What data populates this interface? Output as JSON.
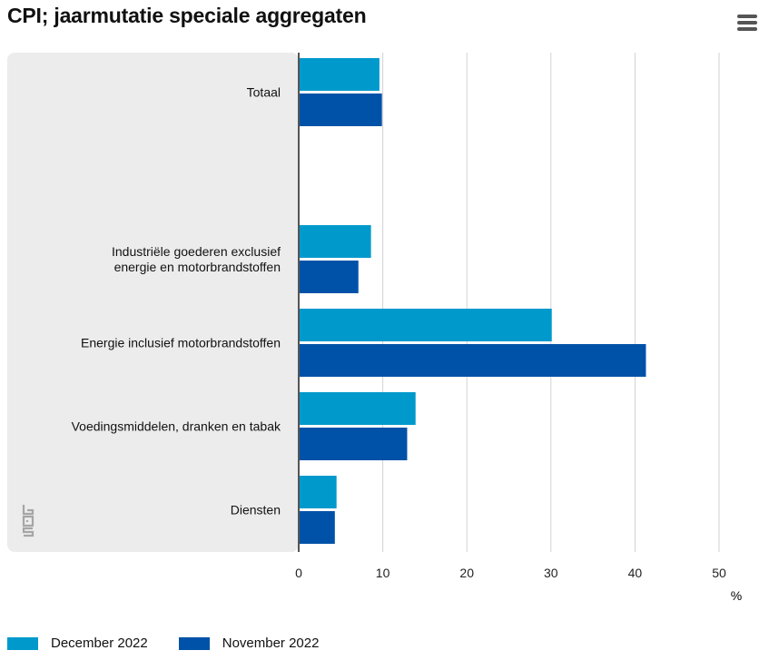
{
  "title": "CPI; jaarmutatie speciale aggregaten",
  "menu": {
    "icon": "hamburger-menu-icon"
  },
  "logo": {
    "icon": "cbs-logo-icon",
    "text": "cbs"
  },
  "colors": {
    "plot_background": "#ececec",
    "series": [
      "#0099cc",
      "#0052a8"
    ],
    "grid": "#d2d2d2",
    "axis": "#555555"
  },
  "chart_data": {
    "type": "bar",
    "orientation": "horizontal",
    "title": "CPI; jaarmutatie speciale aggregaten",
    "categories": [
      [
        "Totaal"
      ],
      [],
      [
        "Industriële goederen exclusief",
        "energie en motorbrandstoffen"
      ],
      [
        "Energie inclusief motorbrandstoffen"
      ],
      [
        "Voedingsmiddelen, dranken en tabak"
      ],
      [
        "Diensten"
      ]
    ],
    "series": [
      {
        "name": "December 2022",
        "values": [
          9.6,
          null,
          8.6,
          30.1,
          13.9,
          4.5
        ]
      },
      {
        "name": "November 2022",
        "values": [
          9.9,
          null,
          7.1,
          41.3,
          12.9,
          4.3
        ]
      }
    ],
    "xlim": [
      0,
      50
    ],
    "ticks": [
      0,
      10,
      20,
      30,
      40,
      50
    ],
    "xlabel": "%",
    "grid": true,
    "legend": "bottom-left"
  }
}
